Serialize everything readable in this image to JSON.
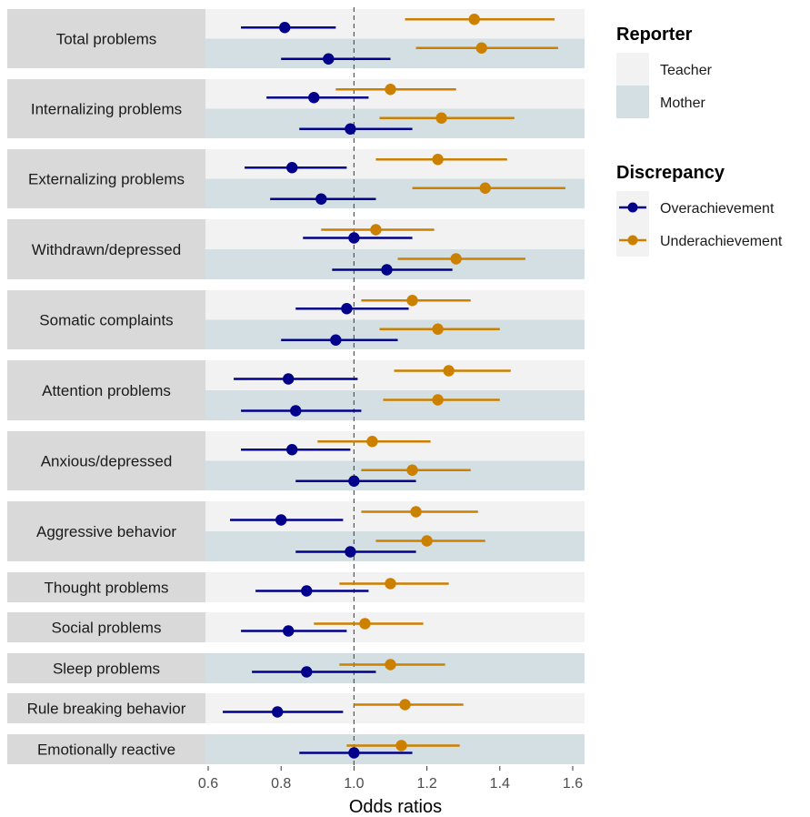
{
  "chart_data": {
    "type": "forest",
    "xlabel": "Odds ratios",
    "xlim": [
      0.6,
      1.62
    ],
    "x_ticks": [
      0.6,
      0.8,
      1.0,
      1.2,
      1.4,
      1.6
    ],
    "x_tick_labels": [
      "0.6",
      "0.8",
      "1.0",
      "1.2",
      "1.4",
      "1.6"
    ],
    "reference_line": 1.0,
    "legend": {
      "reporter": {
        "title": "Reporter",
        "items": [
          {
            "name": "Teacher",
            "color": "#f2f2f2"
          },
          {
            "name": "Mother",
            "color": "#d4dfe3"
          }
        ]
      },
      "discrepancy": {
        "title": "Discrepancy",
        "items": [
          {
            "name": "Overachievement",
            "color": "#00008b"
          },
          {
            "name": "Underachievement",
            "color": "#cc8000"
          }
        ]
      }
    },
    "colors": {
      "Overachievement": "#00008b",
      "Underachievement": "#cc8000",
      "Teacher": "#f2f2f2",
      "Mother": "#d4dfe3",
      "strip": "#d9d9d9"
    },
    "panels": [
      {
        "label": "Total problems",
        "reporters": [
          {
            "reporter": "Teacher",
            "estimates": [
              {
                "discrepancy": "Overachievement",
                "or": 0.81,
                "lo": 0.69,
                "hi": 0.95
              },
              {
                "discrepancy": "Underachievement",
                "or": 1.33,
                "lo": 1.14,
                "hi": 1.55
              }
            ]
          },
          {
            "reporter": "Mother",
            "estimates": [
              {
                "discrepancy": "Overachievement",
                "or": 0.93,
                "lo": 0.8,
                "hi": 1.1
              },
              {
                "discrepancy": "Underachievement",
                "or": 1.35,
                "lo": 1.17,
                "hi": 1.56
              }
            ]
          }
        ]
      },
      {
        "label": "Internalizing problems",
        "reporters": [
          {
            "reporter": "Teacher",
            "estimates": [
              {
                "discrepancy": "Overachievement",
                "or": 0.89,
                "lo": 0.76,
                "hi": 1.04
              },
              {
                "discrepancy": "Underachievement",
                "or": 1.1,
                "lo": 0.95,
                "hi": 1.28
              }
            ]
          },
          {
            "reporter": "Mother",
            "estimates": [
              {
                "discrepancy": "Overachievement",
                "or": 0.99,
                "lo": 0.85,
                "hi": 1.16
              },
              {
                "discrepancy": "Underachievement",
                "or": 1.24,
                "lo": 1.07,
                "hi": 1.44
              }
            ]
          }
        ]
      },
      {
        "label": "Externalizing problems",
        "reporters": [
          {
            "reporter": "Teacher",
            "estimates": [
              {
                "discrepancy": "Overachievement",
                "or": 0.83,
                "lo": 0.7,
                "hi": 0.98
              },
              {
                "discrepancy": "Underachievement",
                "or": 1.23,
                "lo": 1.06,
                "hi": 1.42
              }
            ]
          },
          {
            "reporter": "Mother",
            "estimates": [
              {
                "discrepancy": "Overachievement",
                "or": 0.91,
                "lo": 0.77,
                "hi": 1.06
              },
              {
                "discrepancy": "Underachievement",
                "or": 1.36,
                "lo": 1.16,
                "hi": 1.58
              }
            ]
          }
        ]
      },
      {
        "label": "Withdrawn/depressed",
        "reporters": [
          {
            "reporter": "Teacher",
            "estimates": [
              {
                "discrepancy": "Overachievement",
                "or": 1.0,
                "lo": 0.86,
                "hi": 1.16
              },
              {
                "discrepancy": "Underachievement",
                "or": 1.06,
                "lo": 0.91,
                "hi": 1.22
              }
            ]
          },
          {
            "reporter": "Mother",
            "estimates": [
              {
                "discrepancy": "Overachievement",
                "or": 1.09,
                "lo": 0.94,
                "hi": 1.27
              },
              {
                "discrepancy": "Underachievement",
                "or": 1.28,
                "lo": 1.12,
                "hi": 1.47
              }
            ]
          }
        ]
      },
      {
        "label": "Somatic complaints",
        "reporters": [
          {
            "reporter": "Teacher",
            "estimates": [
              {
                "discrepancy": "Overachievement",
                "or": 0.98,
                "lo": 0.84,
                "hi": 1.15
              },
              {
                "discrepancy": "Underachievement",
                "or": 1.16,
                "lo": 1.02,
                "hi": 1.32
              }
            ]
          },
          {
            "reporter": "Mother",
            "estimates": [
              {
                "discrepancy": "Overachievement",
                "or": 0.95,
                "lo": 0.8,
                "hi": 1.12
              },
              {
                "discrepancy": "Underachievement",
                "or": 1.23,
                "lo": 1.07,
                "hi": 1.4
              }
            ]
          }
        ]
      },
      {
        "label": "Attention problems",
        "reporters": [
          {
            "reporter": "Teacher",
            "estimates": [
              {
                "discrepancy": "Overachievement",
                "or": 0.82,
                "lo": 0.67,
                "hi": 1.01
              },
              {
                "discrepancy": "Underachievement",
                "or": 1.26,
                "lo": 1.11,
                "hi": 1.43
              }
            ]
          },
          {
            "reporter": "Mother",
            "estimates": [
              {
                "discrepancy": "Overachievement",
                "or": 0.84,
                "lo": 0.69,
                "hi": 1.02
              },
              {
                "discrepancy": "Underachievement",
                "or": 1.23,
                "lo": 1.08,
                "hi": 1.4
              }
            ]
          }
        ]
      },
      {
        "label": "Anxious/depressed",
        "reporters": [
          {
            "reporter": "Teacher",
            "estimates": [
              {
                "discrepancy": "Overachievement",
                "or": 0.83,
                "lo": 0.69,
                "hi": 0.99
              },
              {
                "discrepancy": "Underachievement",
                "or": 1.05,
                "lo": 0.9,
                "hi": 1.21
              }
            ]
          },
          {
            "reporter": "Mother",
            "estimates": [
              {
                "discrepancy": "Overachievement",
                "or": 1.0,
                "lo": 0.84,
                "hi": 1.17
              },
              {
                "discrepancy": "Underachievement",
                "or": 1.16,
                "lo": 1.02,
                "hi": 1.32
              }
            ]
          }
        ]
      },
      {
        "label": "Aggressive behavior",
        "reporters": [
          {
            "reporter": "Teacher",
            "estimates": [
              {
                "discrepancy": "Overachievement",
                "or": 0.8,
                "lo": 0.66,
                "hi": 0.97
              },
              {
                "discrepancy": "Underachievement",
                "or": 1.17,
                "lo": 1.02,
                "hi": 1.34
              }
            ]
          },
          {
            "reporter": "Mother",
            "estimates": [
              {
                "discrepancy": "Overachievement",
                "or": 0.99,
                "lo": 0.84,
                "hi": 1.17
              },
              {
                "discrepancy": "Underachievement",
                "or": 1.2,
                "lo": 1.06,
                "hi": 1.36
              }
            ]
          }
        ]
      },
      {
        "label": "Thought problems",
        "reporters": [
          {
            "reporter": "Teacher",
            "estimates": [
              {
                "discrepancy": "Overachievement",
                "or": 0.87,
                "lo": 0.73,
                "hi": 1.04
              },
              {
                "discrepancy": "Underachievement",
                "or": 1.1,
                "lo": 0.96,
                "hi": 1.26
              }
            ]
          }
        ]
      },
      {
        "label": "Social problems",
        "reporters": [
          {
            "reporter": "Teacher",
            "estimates": [
              {
                "discrepancy": "Overachievement",
                "or": 0.82,
                "lo": 0.69,
                "hi": 0.98
              },
              {
                "discrepancy": "Underachievement",
                "or": 1.03,
                "lo": 0.89,
                "hi": 1.19
              }
            ]
          }
        ]
      },
      {
        "label": "Sleep problems",
        "reporters": [
          {
            "reporter": "Mother",
            "estimates": [
              {
                "discrepancy": "Overachievement",
                "or": 0.87,
                "lo": 0.72,
                "hi": 1.06
              },
              {
                "discrepancy": "Underachievement",
                "or": 1.1,
                "lo": 0.96,
                "hi": 1.25
              }
            ]
          }
        ]
      },
      {
        "label": "Rule breaking behavior",
        "reporters": [
          {
            "reporter": "Teacher",
            "estimates": [
              {
                "discrepancy": "Overachievement",
                "or": 0.79,
                "lo": 0.64,
                "hi": 0.97
              },
              {
                "discrepancy": "Underachievement",
                "or": 1.14,
                "lo": 1.0,
                "hi": 1.3
              }
            ]
          }
        ]
      },
      {
        "label": "Emotionally reactive",
        "reporters": [
          {
            "reporter": "Mother",
            "estimates": [
              {
                "discrepancy": "Overachievement",
                "or": 1.0,
                "lo": 0.85,
                "hi": 1.16
              },
              {
                "discrepancy": "Underachievement",
                "or": 1.13,
                "lo": 0.98,
                "hi": 1.29
              }
            ]
          }
        ]
      }
    ]
  }
}
